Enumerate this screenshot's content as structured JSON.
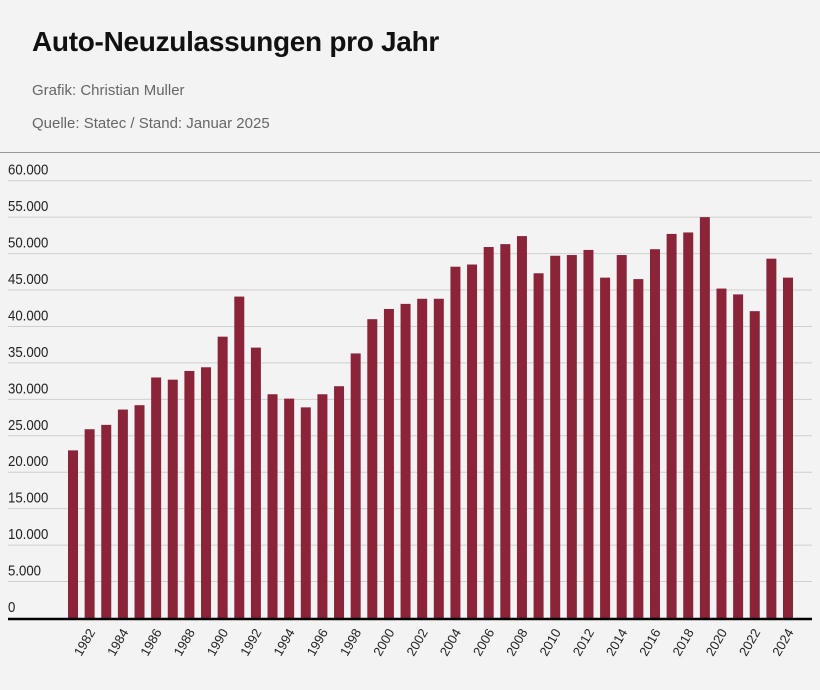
{
  "header": {
    "title": "Auto-Neuzulassungen pro Jahr",
    "credit": "Grafik: Christian Muller",
    "source": "Quelle: Statec / Stand: Januar 2025"
  },
  "chart_data": {
    "type": "bar",
    "title": "Auto-Neuzulassungen pro Jahr",
    "xlabel": "",
    "ylabel": "",
    "ylim": [
      0,
      60000
    ],
    "grid": true,
    "bar_color": "#8b2439",
    "y_ticks": [
      0,
      5000,
      10000,
      15000,
      20000,
      25000,
      30000,
      35000,
      40000,
      45000,
      50000,
      55000,
      60000
    ],
    "y_tick_labels": [
      "0",
      "5.000",
      "10.000",
      "15.000",
      "20.000",
      "25.000",
      "30.000",
      "35.000",
      "40.000",
      "45.000",
      "50.000",
      "55.000",
      "60.000"
    ],
    "x_tick_labels": [
      "1982",
      "1984",
      "1986",
      "1988",
      "1990",
      "1992",
      "1994",
      "1996",
      "1998",
      "2000",
      "2002",
      "2004",
      "2006",
      "2008",
      "2010",
      "2012",
      "2014",
      "2016",
      "2018",
      "2020",
      "2022",
      "2024"
    ],
    "categories": [
      1981,
      1982,
      1983,
      1984,
      1985,
      1986,
      1987,
      1988,
      1989,
      1990,
      1991,
      1992,
      1993,
      1994,
      1995,
      1996,
      1997,
      1998,
      1999,
      2000,
      2001,
      2002,
      2003,
      2004,
      2005,
      2006,
      2007,
      2008,
      2009,
      2010,
      2011,
      2012,
      2013,
      2014,
      2015,
      2016,
      2017,
      2018,
      2019,
      2020,
      2021,
      2022,
      2023,
      2024
    ],
    "values": [
      23000,
      25900,
      26500,
      28600,
      29200,
      33000,
      32700,
      33900,
      34400,
      38600,
      44100,
      37100,
      30700,
      30100,
      28900,
      30700,
      31800,
      36300,
      41000,
      42400,
      43100,
      43800,
      43800,
      48200,
      48500,
      50900,
      51300,
      52400,
      47300,
      49700,
      49800,
      50500,
      46700,
      49800,
      46500,
      50600,
      52700,
      52900,
      55000,
      45200,
      44400,
      42100,
      49300,
      46700
    ]
  }
}
